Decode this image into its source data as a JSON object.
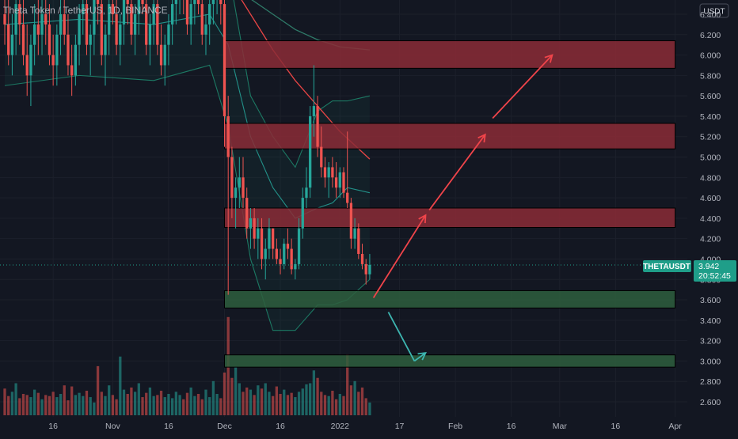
{
  "header": {
    "title": "Theta Token / TetherUS, 1D, BINANCE"
  },
  "currency_label": "USDT",
  "price_badge": {
    "symbol": "THETAUSDT",
    "price": "3.942",
    "countdown": "20:52:45"
  },
  "colors": {
    "background": "#131722",
    "up": "#26a69a",
    "down": "#ef5350",
    "resistance_zone": "#8b2c36",
    "support_zone": "#2e5e3d",
    "band": "#1f8a6e",
    "ma_red": "#e84545",
    "ma_long": "#2f7a68",
    "arrow_up": "#f0444a",
    "arrow_down": "#3db5b0",
    "badge": "#1f9e89"
  },
  "chart_data": {
    "type": "candlestick",
    "title": "Theta Token / TetherUS, 1D, BINANCE",
    "y_axis": {
      "min": 2.45,
      "max": 6.5,
      "ticks": [
        "2.600",
        "2.800",
        "3.000",
        "3.200",
        "3.400",
        "3.600",
        "3.800",
        "4.000",
        "4.200",
        "4.400",
        "4.600",
        "4.800",
        "5.000",
        "5.200",
        "5.400",
        "5.600",
        "5.800",
        "6.000",
        "6.200",
        "6.400"
      ]
    },
    "x_axis": {
      "date_range": [
        "2021-10-03",
        "2022-04-03"
      ],
      "ticks": [
        {
          "label": "16",
          "date": "2021-10-16"
        },
        {
          "label": "Nov",
          "date": "2021-11-01"
        },
        {
          "label": "16",
          "date": "2021-11-16"
        },
        {
          "label": "Dec",
          "date": "2021-12-01"
        },
        {
          "label": "16",
          "date": "2021-12-16"
        },
        {
          "label": "2022",
          "date": "2022-01-01"
        },
        {
          "label": "17",
          "date": "2022-01-17"
        },
        {
          "label": "Feb",
          "date": "2022-02-01"
        },
        {
          "label": "16",
          "date": "2022-02-16"
        },
        {
          "label": "Mar",
          "date": "2022-03-01"
        },
        {
          "label": "16",
          "date": "2022-03-16"
        },
        {
          "label": "Apr",
          "date": "2022-04-01"
        }
      ]
    },
    "candles": {
      "start_date": "2021-10-03",
      "ohlc": [
        [
          6.4,
          6.9,
          6.1,
          6.3
        ],
        [
          6.3,
          6.6,
          5.9,
          6.0
        ],
        [
          6.0,
          6.4,
          5.8,
          6.2
        ],
        [
          6.2,
          6.7,
          6.0,
          6.5
        ],
        [
          6.5,
          6.9,
          6.1,
          6.3
        ],
        [
          6.3,
          6.6,
          5.9,
          6.0
        ],
        [
          6.0,
          6.3,
          5.6,
          5.8
        ],
        [
          5.8,
          6.2,
          5.5,
          6.1
        ],
        [
          6.1,
          6.5,
          5.9,
          6.3
        ],
        [
          6.3,
          6.6,
          6.0,
          6.2
        ],
        [
          6.2,
          6.6,
          6.0,
          6.4
        ],
        [
          6.4,
          6.8,
          6.1,
          6.3
        ],
        [
          6.3,
          6.5,
          5.9,
          6.0
        ],
        [
          6.0,
          6.2,
          5.7,
          5.9
        ],
        [
          5.9,
          6.3,
          5.7,
          6.2
        ],
        [
          6.2,
          6.6,
          6.0,
          6.4
        ],
        [
          6.4,
          6.7,
          6.1,
          6.2
        ],
        [
          6.2,
          6.4,
          5.8,
          5.9
        ],
        [
          5.9,
          6.1,
          5.6,
          5.8
        ],
        [
          5.8,
          6.2,
          5.7,
          6.1
        ],
        [
          6.1,
          6.5,
          5.9,
          6.4
        ],
        [
          6.4,
          6.8,
          6.2,
          6.5
        ],
        [
          6.5,
          6.7,
          6.0,
          6.1
        ],
        [
          6.1,
          6.3,
          5.8,
          6.2
        ],
        [
          6.2,
          6.7,
          6.0,
          6.6
        ],
        [
          6.6,
          6.9,
          6.3,
          6.5
        ],
        [
          6.5,
          6.7,
          5.9,
          6.0
        ],
        [
          6.0,
          6.3,
          5.7,
          6.2
        ],
        [
          6.2,
          6.6,
          6.0,
          6.5
        ],
        [
          6.5,
          6.9,
          6.3,
          6.4
        ],
        [
          6.4,
          6.6,
          6.0,
          6.1
        ],
        [
          6.1,
          6.4,
          5.9,
          6.3
        ],
        [
          6.3,
          6.7,
          6.1,
          6.6
        ],
        [
          6.6,
          6.9,
          6.3,
          6.5
        ],
        [
          6.5,
          6.7,
          6.1,
          6.2
        ],
        [
          6.2,
          6.5,
          6.0,
          6.4
        ],
        [
          6.4,
          6.8,
          6.2,
          6.6
        ],
        [
          6.6,
          6.9,
          6.4,
          6.5
        ],
        [
          6.5,
          6.7,
          6.0,
          6.1
        ],
        [
          6.1,
          6.4,
          5.9,
          6.3
        ],
        [
          6.3,
          6.7,
          6.1,
          6.5
        ],
        [
          6.5,
          6.8,
          6.0,
          6.1
        ],
        [
          6.1,
          6.3,
          5.8,
          5.9
        ],
        [
          5.9,
          6.2,
          5.7,
          6.1
        ],
        [
          6.1,
          6.4,
          5.9,
          6.3
        ],
        [
          6.3,
          6.6,
          6.1,
          6.5
        ],
        [
          6.5,
          6.8,
          6.3,
          6.6
        ],
        [
          6.6,
          6.9,
          6.4,
          6.7
        ],
        [
          6.7,
          6.9,
          6.4,
          6.6
        ],
        [
          6.6,
          6.8,
          6.2,
          6.3
        ],
        [
          6.3,
          6.6,
          6.1,
          6.5
        ],
        [
          6.5,
          6.8,
          6.3,
          6.7
        ],
        [
          6.7,
          6.9,
          6.4,
          6.5
        ],
        [
          6.5,
          6.6,
          6.1,
          6.2
        ],
        [
          6.2,
          6.4,
          6.0,
          6.3
        ],
        [
          6.3,
          6.6,
          6.1,
          6.5
        ],
        [
          6.5,
          6.8,
          6.3,
          6.6
        ],
        [
          6.6,
          6.9,
          6.4,
          6.8
        ],
        [
          6.8,
          6.9,
          6.3,
          6.5
        ],
        [
          6.5,
          6.6,
          5.1,
          5.4
        ],
        [
          5.4,
          5.6,
          3.65,
          5.0
        ],
        [
          5.0,
          5.1,
          4.4,
          4.6
        ],
        [
          4.6,
          4.8,
          4.3,
          4.7
        ],
        [
          4.7,
          5.0,
          4.5,
          4.8
        ],
        [
          4.8,
          5.0,
          4.5,
          4.6
        ],
        [
          4.6,
          4.7,
          4.2,
          4.3
        ],
        [
          4.3,
          4.5,
          4.1,
          4.4
        ],
        [
          4.4,
          4.5,
          4.1,
          4.2
        ],
        [
          4.2,
          4.4,
          4.0,
          4.3
        ],
        [
          4.3,
          4.4,
          3.9,
          4.0
        ],
        [
          4.0,
          4.2,
          3.8,
          4.1
        ],
        [
          4.1,
          4.4,
          4.0,
          4.3
        ],
        [
          4.3,
          4.3,
          4.0,
          4.1
        ],
        [
          4.1,
          4.2,
          3.95,
          4.0
        ],
        [
          4.0,
          4.1,
          3.85,
          3.95
        ],
        [
          3.95,
          4.2,
          3.9,
          4.15
        ],
        [
          4.15,
          4.3,
          4.0,
          4.1
        ],
        [
          4.1,
          4.2,
          3.85,
          3.9
        ],
        [
          3.9,
          4.0,
          3.8,
          3.95
        ],
        [
          3.95,
          4.4,
          3.9,
          4.3
        ],
        [
          4.3,
          4.7,
          4.2,
          4.6
        ],
        [
          4.6,
          4.9,
          4.5,
          4.7
        ],
        [
          4.7,
          5.5,
          4.6,
          5.4
        ],
        [
          5.4,
          5.9,
          5.2,
          5.5
        ],
        [
          5.5,
          5.6,
          5.0,
          5.1
        ],
        [
          5.1,
          5.3,
          4.8,
          4.9
        ],
        [
          4.9,
          5.0,
          4.7,
          4.8
        ],
        [
          4.8,
          4.95,
          4.6,
          4.9
        ],
        [
          4.9,
          5.0,
          4.7,
          4.8
        ],
        [
          4.8,
          4.95,
          4.6,
          4.7
        ],
        [
          4.7,
          4.9,
          4.6,
          4.85
        ],
        [
          4.85,
          4.9,
          4.6,
          4.65
        ],
        [
          4.65,
          5.25,
          4.5,
          4.55
        ],
        [
          4.55,
          4.6,
          4.1,
          4.2
        ],
        [
          4.2,
          4.4,
          4.1,
          4.3
        ],
        [
          4.3,
          4.35,
          4.0,
          4.05
        ],
        [
          4.05,
          4.15,
          3.9,
          3.95
        ],
        [
          3.95,
          4.0,
          3.75,
          3.85
        ],
        [
          3.85,
          4.05,
          3.8,
          3.942
        ]
      ]
    },
    "volume": [
      0.25,
      0.18,
      0.22,
      0.3,
      0.16,
      0.2,
      0.19,
      0.17,
      0.24,
      0.21,
      0.15,
      0.19,
      0.18,
      0.22,
      0.17,
      0.2,
      0.28,
      0.14,
      0.27,
      0.19,
      0.21,
      0.18,
      0.23,
      0.17,
      0.12,
      0.46,
      0.22,
      0.18,
      0.28,
      0.19,
      0.15,
      0.55,
      0.24,
      0.2,
      0.26,
      0.22,
      0.3,
      0.17,
      0.21,
      0.26,
      0.18,
      0.19,
      0.23,
      0.17,
      0.2,
      0.16,
      0.22,
      0.19,
      0.15,
      0.21,
      0.26,
      0.18,
      0.2,
      0.15,
      0.24,
      0.17,
      0.32,
      0.2,
      0.16,
      0.4,
      0.92,
      0.35,
      0.45,
      0.3,
      0.22,
      0.26,
      0.24,
      0.19,
      0.28,
      0.25,
      0.3,
      0.22,
      0.18,
      0.27,
      0.2,
      0.24,
      0.19,
      0.21,
      0.17,
      0.22,
      0.25,
      0.29,
      0.3,
      0.42,
      0.35,
      0.22,
      0.19,
      0.18,
      0.23,
      0.15,
      0.2,
      0.18,
      0.57,
      0.28,
      0.32,
      0.22,
      0.26,
      0.16,
      0.12
    ],
    "bollinger": {
      "upper": [
        [
          0,
          6.9
        ],
        [
          20,
          6.9
        ],
        [
          40,
          6.95
        ],
        [
          55,
          7.0
        ],
        [
          60,
          6.85
        ],
        [
          66,
          5.6
        ],
        [
          72,
          5.2
        ],
        [
          78,
          4.9
        ],
        [
          84,
          5.45
        ],
        [
          88,
          5.55
        ],
        [
          92,
          5.55
        ],
        [
          98,
          5.6
        ]
      ],
      "middle": [
        [
          0,
          6.3
        ],
        [
          20,
          6.35
        ],
        [
          40,
          6.3
        ],
        [
          55,
          6.4
        ],
        [
          60,
          6.1
        ],
        [
          66,
          5.2
        ],
        [
          72,
          4.7
        ],
        [
          78,
          4.4
        ],
        [
          84,
          4.5
        ],
        [
          88,
          4.55
        ],
        [
          92,
          4.7
        ],
        [
          98,
          4.65
        ]
      ],
      "lower": [
        [
          0,
          5.7
        ],
        [
          20,
          5.8
        ],
        [
          40,
          5.75
        ],
        [
          55,
          5.9
        ],
        [
          60,
          5.3
        ],
        [
          66,
          4.0
        ],
        [
          72,
          3.3
        ],
        [
          78,
          3.3
        ],
        [
          84,
          3.55
        ],
        [
          88,
          3.55
        ],
        [
          92,
          3.6
        ],
        [
          98,
          3.8
        ]
      ]
    },
    "moving_averages": [
      {
        "points": [
          [
            0,
            6.8
          ],
          [
            20,
            6.9
          ],
          [
            40,
            6.9
          ],
          [
            60,
            6.75
          ],
          [
            66,
            6.4
          ],
          [
            72,
            6.05
          ],
          [
            78,
            5.75
          ],
          [
            84,
            5.5
          ],
          [
            90,
            5.25
          ],
          [
            98,
            4.98
          ]
        ]
      },
      {
        "points": [
          [
            55,
            6.9
          ],
          [
            60,
            6.7
          ],
          [
            66,
            6.55
          ],
          [
            72,
            6.4
          ],
          [
            78,
            6.25
          ],
          [
            84,
            6.15
          ],
          [
            90,
            6.08
          ],
          [
            98,
            6.05
          ]
        ]
      }
    ],
    "zones": [
      {
        "type": "resistance",
        "from_date": "2021-12-01",
        "to_date": "2022-04-01",
        "low": 5.87,
        "high": 6.14
      },
      {
        "type": "resistance",
        "from_date": "2021-12-01",
        "to_date": "2022-04-01",
        "low": 5.08,
        "high": 5.33
      },
      {
        "type": "resistance",
        "from_date": "2021-12-01",
        "to_date": "2022-04-01",
        "low": 4.31,
        "high": 4.5
      },
      {
        "type": "support",
        "from_date": "2021-12-01",
        "to_date": "2022-04-01",
        "low": 3.52,
        "high": 3.69
      },
      {
        "type": "support",
        "from_date": "2021-12-01",
        "to_date": "2022-04-01",
        "low": 2.94,
        "high": 3.06
      }
    ],
    "arrows": [
      {
        "direction": "up",
        "from": {
          "date": "2022-01-10",
          "price": 3.62
        },
        "to": {
          "date": "2022-01-24",
          "price": 4.43
        }
      },
      {
        "direction": "up",
        "from": {
          "date": "2022-01-25",
          "price": 4.48
        },
        "to": {
          "date": "2022-02-09",
          "price": 5.22
        }
      },
      {
        "direction": "up",
        "from": {
          "date": "2022-02-11",
          "price": 5.38
        },
        "to": {
          "date": "2022-02-27",
          "price": 6.0
        }
      },
      {
        "direction": "down",
        "from": {
          "date": "2022-01-14",
          "price": 3.48
        },
        "to": {
          "date": "2022-01-21",
          "price": 3.0
        }
      },
      {
        "direction": "down",
        "from": {
          "date": "2022-01-21",
          "price": 3.0
        },
        "to": {
          "date": "2022-01-24",
          "price": 3.08
        }
      }
    ]
  }
}
